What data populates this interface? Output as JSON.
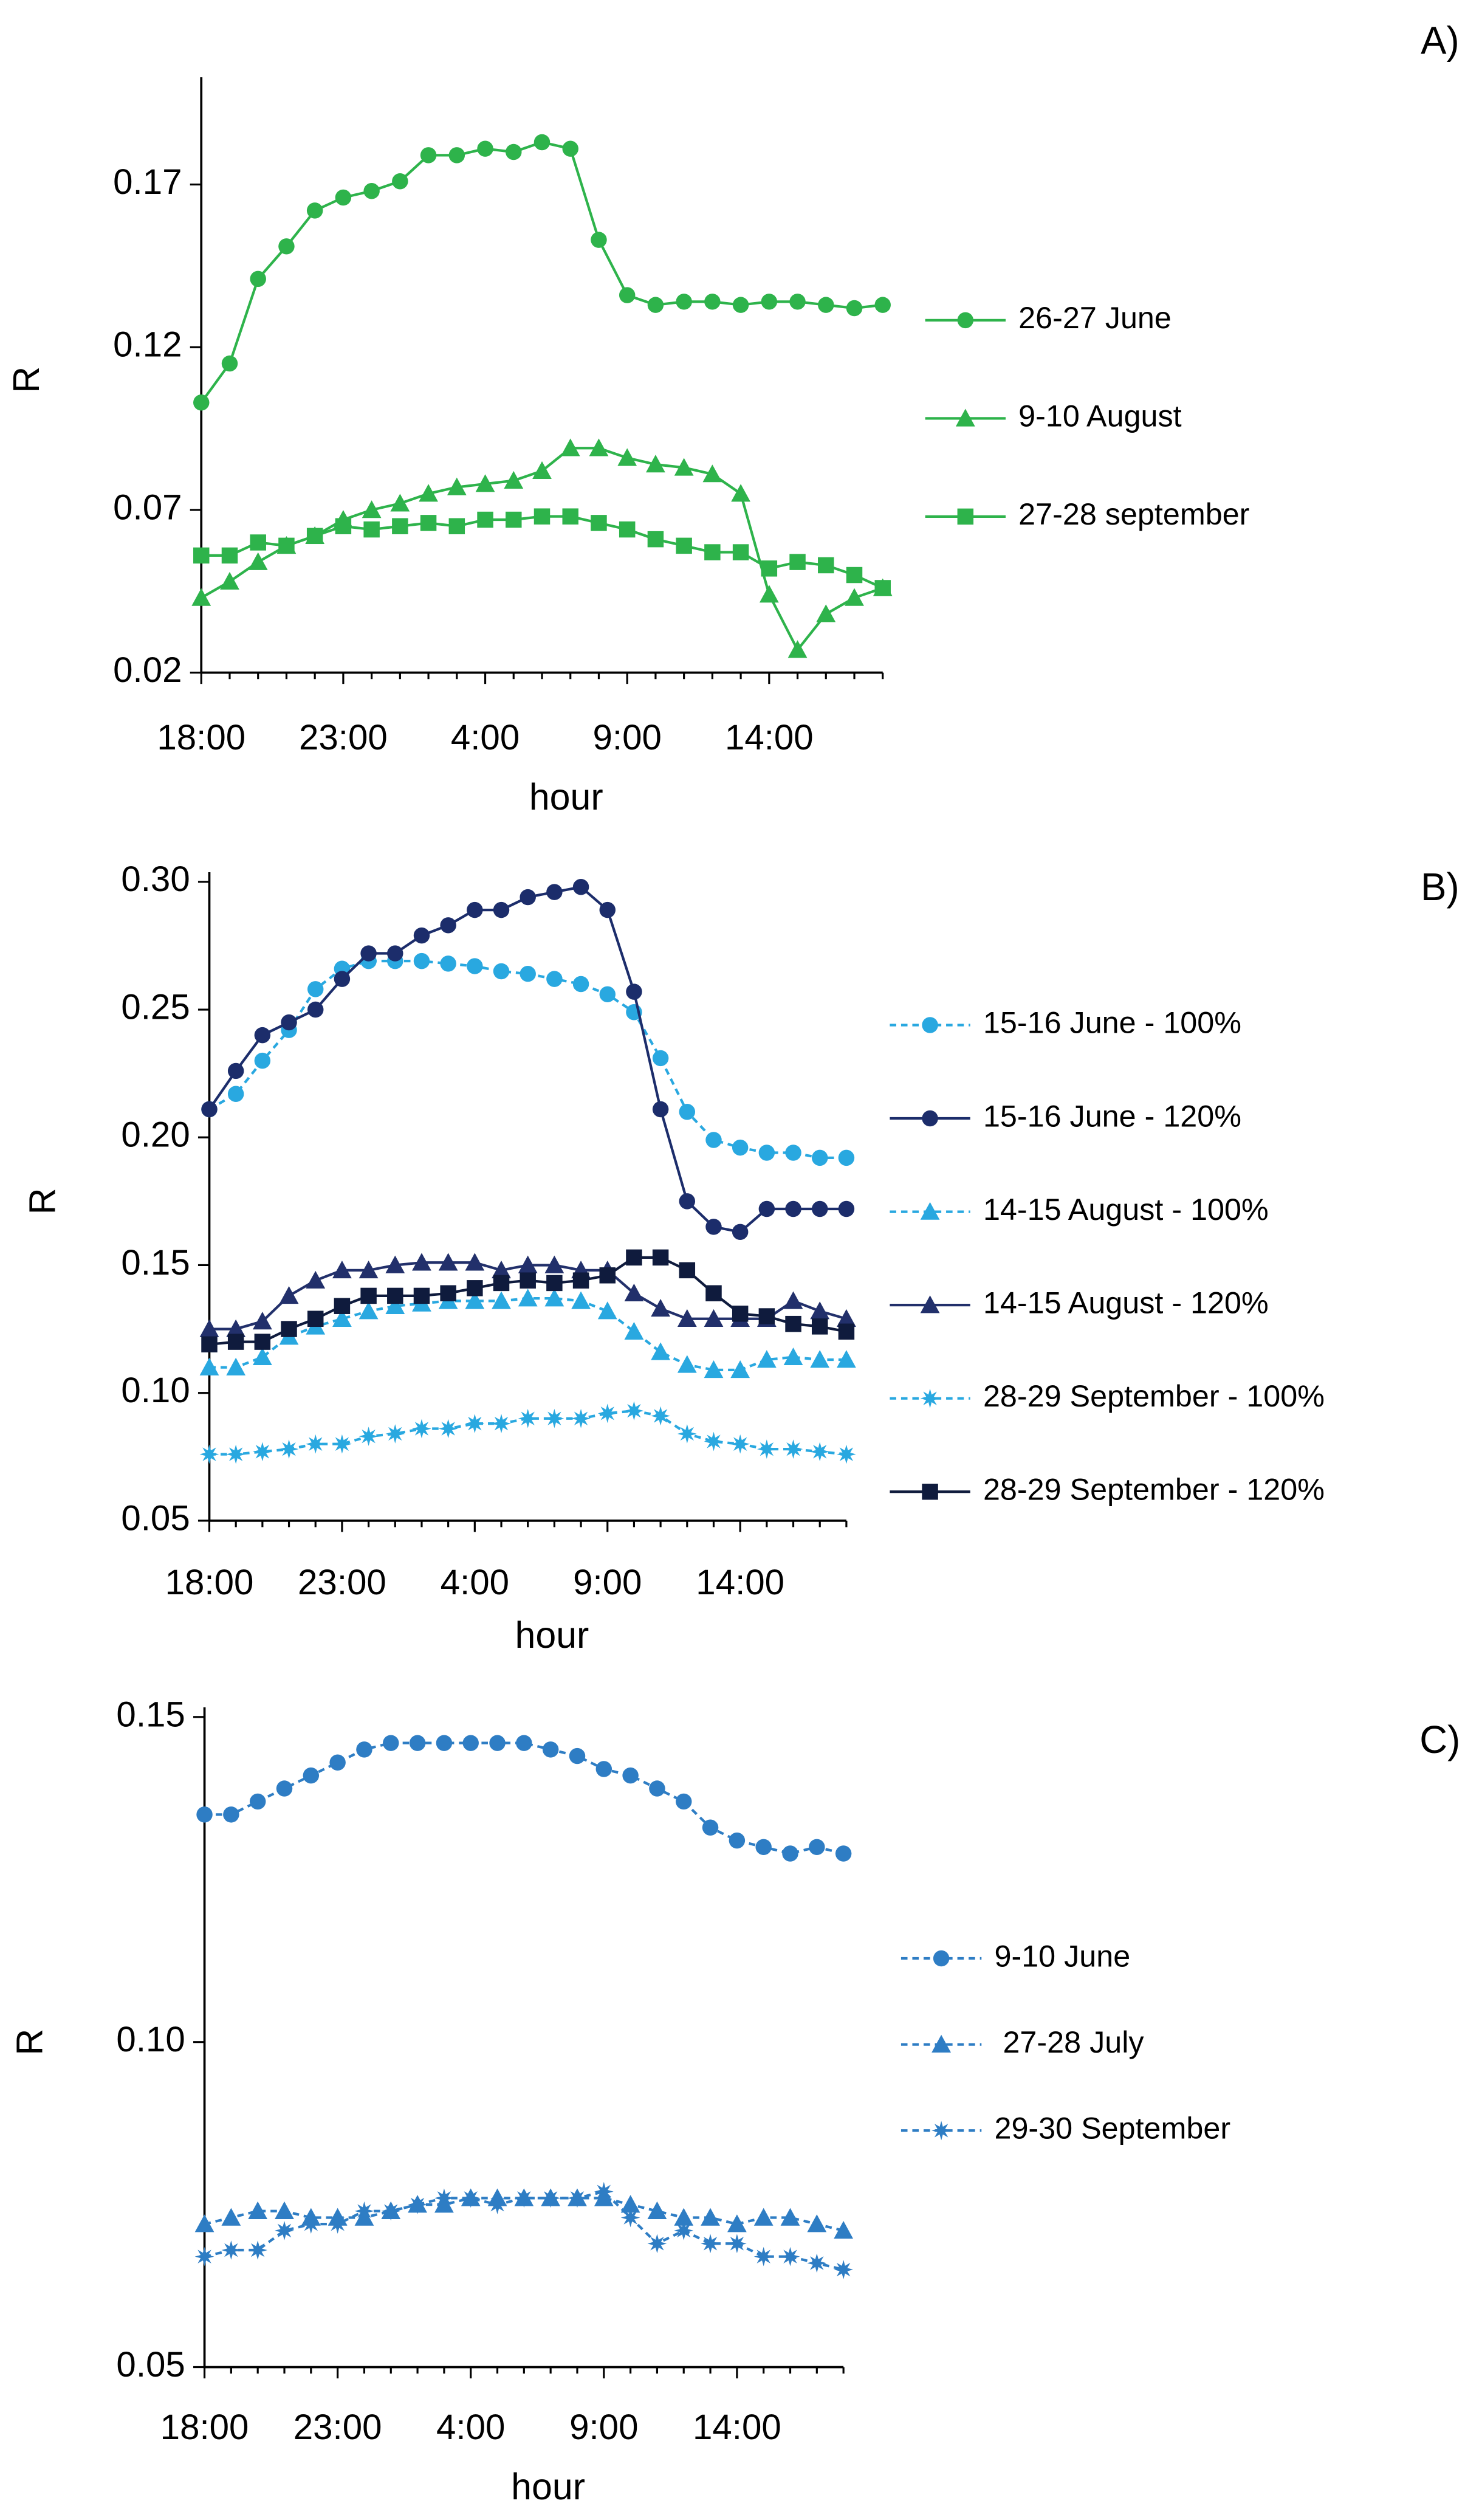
{
  "chart_data": [
    {
      "type": "line",
      "label": "A)",
      "ylabel": "R",
      "xlabel": "hour",
      "legend": "right",
      "categories": [
        "18:00",
        null,
        null,
        null,
        null,
        "23:00",
        null,
        null,
        null,
        null,
        "4:00",
        null,
        null,
        null,
        null,
        "9:00",
        null,
        null,
        null,
        null,
        "14:00",
        null,
        null,
        null,
        null
      ],
      "ylim": [
        0.02,
        0.2
      ],
      "yticks": [
        0.02,
        0.07,
        0.12,
        0.17
      ],
      "series": [
        {
          "name": "26-27 June",
          "color": "#2eb34b",
          "marker": "circle",
          "dashed": false,
          "values": [
            0.103,
            0.115,
            0.141,
            0.151,
            0.162,
            0.166,
            0.168,
            0.171,
            0.179,
            0.179,
            0.181,
            0.18,
            0.183,
            0.181,
            0.153,
            0.136,
            0.133,
            0.134,
            0.134,
            0.133,
            0.134,
            0.134,
            0.133,
            0.132,
            0.133
          ]
        },
        {
          "name": "9-10 August",
          "color": "#2eb34b",
          "marker": "triangle",
          "dashed": false,
          "values": [
            0.043,
            0.048,
            0.054,
            0.059,
            0.062,
            0.067,
            0.07,
            0.072,
            0.075,
            0.077,
            0.078,
            0.079,
            0.082,
            0.089,
            0.089,
            0.086,
            0.084,
            0.083,
            0.081,
            0.075,
            0.044,
            0.027,
            0.038,
            0.043,
            0.046
          ]
        },
        {
          "name": "27-28 september",
          "color": "#2eb34b",
          "marker": "square",
          "dashed": false,
          "values": [
            0.056,
            0.056,
            0.06,
            0.059,
            0.062,
            0.065,
            0.064,
            0.065,
            0.066,
            0.065,
            0.067,
            0.067,
            0.068,
            0.068,
            0.066,
            0.064,
            0.061,
            0.059,
            0.057,
            0.057,
            0.052,
            0.054,
            0.053,
            0.05,
            0.046
          ]
        }
      ]
    },
    {
      "type": "line",
      "label": "B)",
      "ylabel": "R",
      "xlabel": "hour",
      "legend": "right",
      "categories": [
        "18:00",
        null,
        null,
        null,
        null,
        "23:00",
        null,
        null,
        null,
        null,
        "4:00",
        null,
        null,
        null,
        null,
        "9:00",
        null,
        null,
        null,
        null,
        "14:00",
        null,
        null,
        null,
        null
      ],
      "ylim": [
        0.05,
        0.3
      ],
      "yticks": [
        0.05,
        {
          "value": 0.1,
          "label": "0.10"
        },
        0.15,
        {
          "value": 0.2,
          "label": "0.20"
        },
        0.25,
        {
          "value": 0.3,
          "label": "0.30"
        }
      ],
      "series": [
        {
          "name": "15-16 June - 100%",
          "color": "#29a8e0",
          "marker": "circle",
          "dashed": true,
          "values": [
            0.211,
            0.217,
            0.23,
            0.242,
            0.258,
            0.266,
            0.269,
            0.269,
            0.269,
            0.268,
            0.267,
            0.265,
            0.264,
            0.262,
            0.26,
            0.256,
            0.249,
            0.231,
            0.21,
            0.199,
            0.196,
            0.194,
            0.194,
            0.192,
            0.192
          ]
        },
        {
          "name": "15-16 June - 120%",
          "color": "#1c2d6b",
          "marker": "circle",
          "dashed": false,
          "values": [
            0.211,
            0.226,
            0.24,
            0.245,
            0.25,
            0.262,
            0.272,
            0.272,
            0.279,
            0.283,
            0.289,
            0.289,
            0.294,
            0.296,
            0.298,
            0.289,
            0.257,
            0.211,
            0.175,
            0.165,
            0.163,
            0.172,
            0.172,
            0.172,
            0.172
          ]
        },
        {
          "name": "14-15 August - 100%",
          "color": "#29a8e0",
          "marker": "triangle",
          "dashed": true,
          "values": [
            0.11,
            0.11,
            0.114,
            0.122,
            0.126,
            0.129,
            0.132,
            0.134,
            0.135,
            0.136,
            0.136,
            0.136,
            0.137,
            0.137,
            0.136,
            0.132,
            0.124,
            0.116,
            0.111,
            0.109,
            0.109,
            0.113,
            0.114,
            0.113,
            0.113
          ]
        },
        {
          "name": "14-15 August - 120%",
          "color": "#22306b",
          "marker": "triangle",
          "dashed": false,
          "values": [
            0.125,
            0.125,
            0.128,
            0.138,
            0.144,
            0.148,
            0.148,
            0.15,
            0.151,
            0.151,
            0.151,
            0.148,
            0.15,
            0.15,
            0.148,
            0.148,
            0.139,
            0.133,
            0.129,
            0.129,
            0.129,
            0.129,
            0.136,
            0.132,
            0.129
          ]
        },
        {
          "name": "28-29 September - 100%",
          "color": "#29a8e0",
          "marker": "asterisk",
          "dashed": true,
          "values": [
            0.076,
            0.076,
            0.077,
            0.078,
            0.08,
            0.08,
            0.083,
            0.084,
            0.086,
            0.086,
            0.088,
            0.088,
            0.09,
            0.09,
            0.09,
            0.092,
            0.093,
            0.091,
            0.084,
            0.081,
            0.08,
            0.078,
            0.078,
            0.077,
            0.076
          ]
        },
        {
          "name": "28-29 September - 120%",
          "color": "#0f1b3d",
          "marker": "square",
          "dashed": false,
          "values": [
            0.119,
            0.12,
            0.12,
            0.125,
            0.129,
            0.134,
            0.138,
            0.138,
            0.138,
            0.139,
            0.141,
            0.143,
            0.144,
            0.143,
            0.144,
            0.146,
            0.153,
            0.153,
            0.148,
            0.139,
            0.131,
            0.13,
            0.127,
            0.126,
            0.124
          ]
        }
      ]
    },
    {
      "type": "line",
      "label": "C)",
      "ylabel": "R",
      "xlabel": "hour",
      "legend": "right",
      "categories": [
        "18:00",
        null,
        null,
        null,
        null,
        "23:00",
        null,
        null,
        null,
        null,
        "4:00",
        null,
        null,
        null,
        null,
        "9:00",
        null,
        null,
        null,
        null,
        "14:00",
        null,
        null,
        null,
        null
      ],
      "ylim": [
        0.05,
        0.15
      ],
      "yticks": [
        0.05,
        {
          "value": 0.1,
          "label": "0.10"
        },
        0.15
      ],
      "series": [
        {
          "name": "9-10 June",
          "color": "#2e7dc4",
          "marker": "circle",
          "dashed": true,
          "values": [
            0.135,
            0.135,
            0.137,
            0.139,
            0.141,
            0.143,
            0.145,
            0.146,
            0.146,
            0.146,
            0.146,
            0.146,
            0.146,
            0.145,
            0.144,
            0.142,
            0.141,
            0.139,
            0.137,
            0.133,
            0.131,
            0.13,
            0.129,
            0.13,
            0.129
          ]
        },
        {
          "name": " 27-28 July",
          "color": "#2e7dc4",
          "marker": "triangle",
          "dashed": true,
          "values": [
            0.072,
            0.073,
            0.074,
            0.074,
            0.073,
            0.073,
            0.073,
            0.074,
            0.075,
            0.075,
            0.076,
            0.076,
            0.076,
            0.076,
            0.076,
            0.076,
            0.075,
            0.074,
            0.073,
            0.073,
            0.072,
            0.073,
            0.073,
            0.072,
            0.071
          ]
        },
        {
          "name": "29-30 September",
          "color": "#2e7dc4",
          "marker": "asterisk",
          "dashed": true,
          "values": [
            0.067,
            0.068,
            0.068,
            0.071,
            0.072,
            0.072,
            0.074,
            0.074,
            0.075,
            0.076,
            0.076,
            0.075,
            0.076,
            0.076,
            0.076,
            0.077,
            0.073,
            0.069,
            0.071,
            0.069,
            0.069,
            0.067,
            0.067,
            0.066,
            0.065
          ]
        }
      ]
    }
  ]
}
